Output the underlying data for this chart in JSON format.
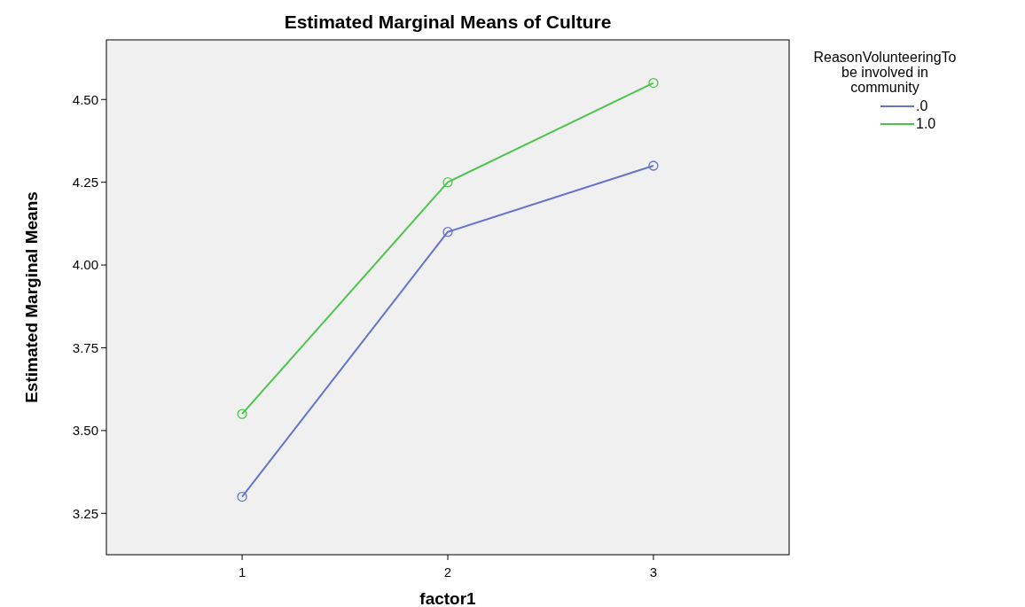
{
  "chart_data": {
    "type": "line",
    "title": "Estimated Marginal Means of Culture",
    "xlabel": "factor1",
    "ylabel": "Estimated Marginal Means",
    "legend_title": "ReasonVolunteeringTo be involved in community",
    "x": [
      1,
      2,
      3
    ],
    "xlim": [
      0.34,
      3.66
    ],
    "xticks": [
      1,
      2,
      3
    ],
    "ylim": [
      3.125,
      4.68
    ],
    "yticks": [
      3.25,
      {
        "value": 3.5,
        "label": "3.50"
      },
      3.75,
      {
        "value": 4,
        "label": "4.00"
      },
      4.25,
      {
        "value": 4.5,
        "label": "4.50"
      }
    ],
    "series": [
      {
        "name": ".0",
        "color": "#6474c8",
        "values": [
          3.3,
          4.1,
          4.3
        ]
      },
      {
        "name": "1.0",
        "color": "#4cc44c",
        "values": [
          3.55,
          4.25,
          4.55
        ]
      }
    ],
    "marker": "circle",
    "legend": "top right",
    "grid": false
  }
}
